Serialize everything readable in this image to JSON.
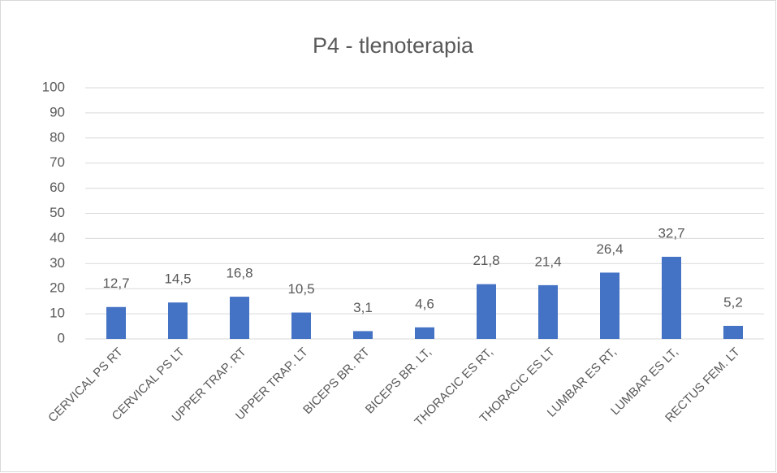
{
  "chart_data": {
    "type": "bar",
    "title": "P4 - tlenoterapia",
    "categories": [
      "CERVICAL PS RT",
      "CERVICAL PS LT",
      "UPPER TRAP. RT",
      "UPPER TRAP. LT",
      "BICEPS BR. RT",
      "BICEPS BR. LT,",
      "THORACIC ES RT,",
      "THORACIC ES LT",
      "LUMBAR ES RT,",
      "LUMBAR ES LT,",
      "RECTUS FEM. LT"
    ],
    "values": [
      12.7,
      14.5,
      16.8,
      10.5,
      3.1,
      4.6,
      21.8,
      21.4,
      26.4,
      32.7,
      5.2
    ],
    "value_labels": [
      "12,7",
      "14,5",
      "16,8",
      "10,5",
      "3,1",
      "4,6",
      "21,8",
      "21,4",
      "26,4",
      "32,7",
      "5,2"
    ],
    "color": "#4472c4",
    "ylim": [
      0,
      100
    ],
    "yticks": [
      0,
      10,
      20,
      30,
      40,
      50,
      60,
      70,
      80,
      90,
      100
    ],
    "grid": true
  }
}
